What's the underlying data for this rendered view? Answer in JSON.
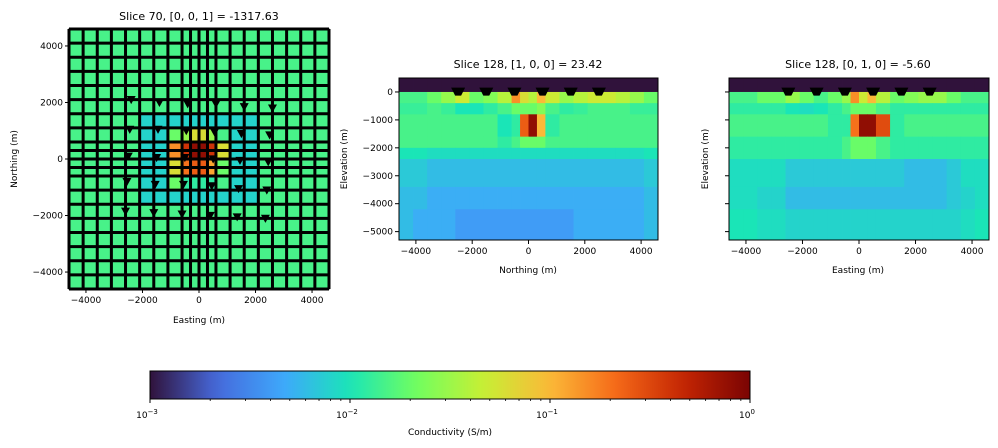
{
  "colors": {
    "turbo_stops": [
      "#30123b",
      "#4669db",
      "#3ea8fc",
      "#1ae5b7",
      "#71fe5f",
      "#c7ef34",
      "#fbb938",
      "#f56918",
      "#c42503",
      "#7a0403"
    ]
  },
  "chart_data": [
    {
      "type": "heatmap",
      "title": "Slice 70, [0, 0, 1] = -1317.63",
      "xlabel": "Easting (m)",
      "ylabel": "Northing (m)",
      "xlim": [
        -4600,
        4600
      ],
      "ylim": [
        -4600,
        4600
      ],
      "xticks": [
        -4000,
        -2000,
        0,
        2000,
        4000
      ],
      "yticks": [
        -4000,
        -2000,
        0,
        2000,
        4000
      ],
      "xtick_labels": [
        "−4000",
        "−2000",
        "0",
        "2000",
        "4000"
      ],
      "ytick_labels": [
        "−4000",
        "−2000",
        "0",
        "2000",
        "4000"
      ],
      "grid_edges": [
        -4600,
        -4100,
        -3600,
        -3100,
        -2600,
        -2100,
        -1600,
        -1100,
        -600,
        -300,
        0,
        300,
        600,
        1100,
        1600,
        2100,
        2600,
        3100,
        3600,
        4100,
        4600
      ],
      "cells": [
        {
          "x": [
            -1100,
            -600
          ],
          "y": [
            -600,
            -1100
          ],
          "v": 0.02
        },
        {
          "x": [
            -1100,
            -600
          ],
          "y": [
            600,
            1100
          ],
          "v": 0.02
        },
        {
          "x": [
            -600,
            -300
          ],
          "y": [
            1100,
            600
          ],
          "v": 0.03
        },
        {
          "x": [
            -300,
            0
          ],
          "y": [
            1100,
            600
          ],
          "v": 0.06
        },
        {
          "x": [
            0,
            300
          ],
          "y": [
            1100,
            600
          ],
          "v": 0.06
        },
        {
          "x": [
            300,
            600
          ],
          "y": [
            1100,
            600
          ],
          "v": 0.03
        },
        {
          "x": [
            -1100,
            -600
          ],
          "y": [
            600,
            0
          ],
          "v": 0.15
        },
        {
          "x": [
            -600,
            -300
          ],
          "y": [
            600,
            0
          ],
          "v": 0.4
        },
        {
          "x": [
            -300,
            0
          ],
          "y": [
            600,
            0
          ],
          "v": 0.8
        },
        {
          "x": [
            0,
            300
          ],
          "y": [
            600,
            0
          ],
          "v": 0.8
        },
        {
          "x": [
            300,
            600
          ],
          "y": [
            600,
            0
          ],
          "v": 0.4
        },
        {
          "x": [
            600,
            1100
          ],
          "y": [
            600,
            0
          ],
          "v": 0.06
        },
        {
          "x": [
            -1100,
            -600
          ],
          "y": [
            0,
            -600
          ],
          "v": 0.06
        },
        {
          "x": [
            -600,
            -300
          ],
          "y": [
            0,
            -600
          ],
          "v": 0.2
        },
        {
          "x": [
            -300,
            0
          ],
          "y": [
            0,
            -600
          ],
          "v": 0.25
        },
        {
          "x": [
            0,
            300
          ],
          "y": [
            0,
            -600
          ],
          "v": 0.25
        },
        {
          "x": [
            300,
            600
          ],
          "y": [
            0,
            -600
          ],
          "v": 0.12
        },
        {
          "x": [
            600,
            1100
          ],
          "y": [
            0,
            -600
          ],
          "v": 0.02
        },
        {
          "x": [
            -600,
            600
          ],
          "y": [
            -600,
            -1100
          ],
          "v": 0.012
        },
        {
          "x": [
            -2100,
            -1100
          ],
          "y": [
            1600,
            -1600
          ],
          "v": 0.008
        },
        {
          "x": [
            1100,
            2100
          ],
          "y": [
            1600,
            -1600
          ],
          "v": 0.008
        },
        {
          "x": [
            -1100,
            1100
          ],
          "y": [
            1600,
            1100
          ],
          "v": 0.008
        },
        {
          "x": [
            -1100,
            1100
          ],
          "y": [
            -1100,
            -1600
          ],
          "v": 0.008
        }
      ],
      "background_value": 0.015,
      "markers": [
        [
          -2400,
          2100
        ],
        [
          -1400,
          2000
        ],
        [
          -400,
          1950
        ],
        [
          600,
          1950
        ],
        [
          1600,
          1850
        ],
        [
          2600,
          1800
        ],
        [
          -2450,
          1050
        ],
        [
          -1450,
          1050
        ],
        [
          -450,
          1000
        ],
        [
          550,
          950
        ],
        [
          1500,
          900
        ],
        [
          2500,
          850
        ],
        [
          -2500,
          100
        ],
        [
          -1500,
          50
        ],
        [
          -500,
          50
        ],
        [
          500,
          0
        ],
        [
          1450,
          -50
        ],
        [
          2450,
          -100
        ],
        [
          -2550,
          -800
        ],
        [
          -1550,
          -900
        ],
        [
          -550,
          -900
        ],
        [
          450,
          -950
        ],
        [
          1400,
          -1050
        ],
        [
          2400,
          -1100
        ],
        [
          -2600,
          -1850
        ],
        [
          -1600,
          -1900
        ],
        [
          -600,
          -1950
        ],
        [
          400,
          -2000
        ],
        [
          1350,
          -2050
        ],
        [
          2350,
          -2100
        ]
      ]
    },
    {
      "type": "heatmap",
      "title": "Slice 128, [1, 0, 0] = 23.42",
      "xlabel": "Northing (m)",
      "ylabel": "Elevation (m)",
      "xlim": [
        -4600,
        4600
      ],
      "ylim": [
        -5300,
        500
      ],
      "xticks": [
        -4000,
        -2000,
        0,
        2000,
        4000
      ],
      "yticks": [
        0,
        -1000,
        -2000,
        -3000,
        -4000,
        -5000
      ],
      "xtick_labels": [
        "−4000",
        "−2000",
        "0",
        "2000",
        "4000"
      ],
      "ytick_labels": [
        "0",
        "−1000",
        "−2000",
        "−3000",
        "−4000",
        "−5000"
      ],
      "columns": [
        -4600,
        -4100,
        -3600,
        -3100,
        -2600,
        -2100,
        -1600,
        -1100,
        -600,
        -300,
        0,
        300,
        600,
        1100,
        1600,
        2100,
        2600,
        3100,
        3600,
        4100,
        4600
      ],
      "rows": [
        {
          "y": [
            500,
            0
          ],
          "values": [
            0.001,
            0.001,
            0.001,
            0.001,
            0.001,
            0.001,
            0.001,
            0.001,
            0.001,
            0.001,
            0.001,
            0.001,
            0.001,
            0.001,
            0.001,
            0.001,
            0.001,
            0.001,
            0.001,
            0.001
          ]
        },
        {
          "y": [
            0,
            -400
          ],
          "values": [
            0.015,
            0.015,
            0.02,
            0.03,
            0.05,
            0.02,
            0.025,
            0.04,
            0.15,
            0.06,
            0.04,
            0.1,
            0.05,
            0.03,
            0.04,
            0.05,
            0.05,
            0.04,
            0.03,
            0.02
          ]
        },
        {
          "y": [
            -400,
            -800
          ],
          "values": [
            0.013,
            0.013,
            0.015,
            0.013,
            0.01,
            0.01,
            0.012,
            0.015,
            0.02,
            0.02,
            0.02,
            0.025,
            0.015,
            0.012,
            0.013,
            0.015,
            0.015,
            0.015,
            0.013,
            0.013
          ]
        },
        {
          "y": [
            -800,
            -1600
          ],
          "values": [
            0.015,
            0.015,
            0.015,
            0.015,
            0.015,
            0.015,
            0.015,
            0.01,
            0.012,
            0.25,
            0.8,
            0.1,
            0.012,
            0.015,
            0.015,
            0.015,
            0.015,
            0.015,
            0.015,
            0.015
          ]
        },
        {
          "y": [
            -1600,
            -2000
          ],
          "values": [
            0.015,
            0.015,
            0.015,
            0.015,
            0.015,
            0.015,
            0.015,
            0.012,
            0.015,
            0.02,
            0.02,
            0.02,
            0.015,
            0.015,
            0.015,
            0.015,
            0.015,
            0.015,
            0.015,
            0.015
          ]
        },
        {
          "y": [
            -2000,
            -2400
          ],
          "values": [
            0.01,
            0.01,
            0.009,
            0.009,
            0.009,
            0.009,
            0.009,
            0.009,
            0.009,
            0.009,
            0.009,
            0.009,
            0.009,
            0.009,
            0.009,
            0.009,
            0.009,
            0.009,
            0.009,
            0.01
          ]
        },
        {
          "y": [
            -2400,
            -3400
          ],
          "values": [
            0.007,
            0.007,
            0.006,
            0.006,
            0.006,
            0.006,
            0.006,
            0.006,
            0.006,
            0.006,
            0.006,
            0.006,
            0.006,
            0.006,
            0.006,
            0.006,
            0.006,
            0.006,
            0.006,
            0.007
          ]
        },
        {
          "y": [
            -3400,
            -4200
          ],
          "values": [
            0.006,
            0.006,
            0.005,
            0.005,
            0.005,
            0.005,
            0.005,
            0.005,
            0.005,
            0.005,
            0.005,
            0.005,
            0.005,
            0.005,
            0.005,
            0.005,
            0.005,
            0.005,
            0.005,
            0.006
          ]
        },
        {
          "y": [
            -4200,
            -5300
          ],
          "values": [
            0.006,
            0.005,
            0.005,
            0.005,
            0.004,
            0.004,
            0.004,
            0.004,
            0.004,
            0.004,
            0.004,
            0.004,
            0.004,
            0.004,
            0.005,
            0.005,
            0.005,
            0.005,
            0.005,
            0.006
          ]
        }
      ],
      "markers": [
        [
          -2500,
          50
        ],
        [
          -1500,
          50
        ],
        [
          -500,
          50
        ],
        [
          500,
          50
        ],
        [
          1500,
          50
        ],
        [
          2500,
          50
        ]
      ]
    },
    {
      "type": "heatmap",
      "title": "Slice 128, [0, 1, 0] = -5.60",
      "xlabel": "Easting (m)",
      "ylabel": "Elevation (m)",
      "xlim": [
        -4600,
        4600
      ],
      "ylim": [
        -5300,
        500
      ],
      "xticks": [
        -4000,
        -2000,
        0,
        2000,
        4000
      ],
      "yticks": [
        0,
        -1000,
        -2000,
        -3000,
        -4000,
        -5000
      ],
      "xtick_labels": [
        "−4000",
        "−2000",
        "0",
        "2000",
        "4000"
      ],
      "ytick_labels": [],
      "columns": [
        -4600,
        -4100,
        -3600,
        -3100,
        -2600,
        -2100,
        -1600,
        -1100,
        -600,
        -300,
        0,
        300,
        600,
        1100,
        1600,
        2100,
        2600,
        3100,
        3600,
        4100,
        4600
      ],
      "rows": [
        {
          "y": [
            500,
            0
          ],
          "values": [
            0.001,
            0.001,
            0.001,
            0.001,
            0.001,
            0.001,
            0.001,
            0.001,
            0.001,
            0.001,
            0.001,
            0.001,
            0.001,
            0.001,
            0.001,
            0.001,
            0.001,
            0.001,
            0.001,
            0.001
          ]
        },
        {
          "y": [
            0,
            -400
          ],
          "values": [
            0.015,
            0.015,
            0.02,
            0.02,
            0.03,
            0.02,
            0.015,
            0.02,
            0.03,
            0.15,
            0.05,
            0.1,
            0.04,
            0.02,
            0.025,
            0.03,
            0.03,
            0.02,
            0.015,
            0.015
          ]
        },
        {
          "y": [
            -400,
            -800
          ],
          "values": [
            0.012,
            0.012,
            0.012,
            0.012,
            0.01,
            0.009,
            0.01,
            0.012,
            0.015,
            0.02,
            0.02,
            0.02,
            0.015,
            0.012,
            0.012,
            0.012,
            0.012,
            0.012,
            0.012,
            0.012
          ]
        },
        {
          "y": [
            -800,
            -1600
          ],
          "values": [
            0.015,
            0.015,
            0.015,
            0.015,
            0.015,
            0.015,
            0.015,
            0.012,
            0.012,
            0.2,
            0.8,
            0.8,
            0.3,
            0.012,
            0.015,
            0.015,
            0.015,
            0.015,
            0.015,
            0.015
          ]
        },
        {
          "y": [
            -1600,
            -2400
          ],
          "values": [
            0.012,
            0.012,
            0.012,
            0.012,
            0.012,
            0.012,
            0.012,
            0.012,
            0.015,
            0.02,
            0.02,
            0.02,
            0.015,
            0.012,
            0.012,
            0.012,
            0.012,
            0.012,
            0.012,
            0.012
          ]
        },
        {
          "y": [
            -2400,
            -3400
          ],
          "values": [
            0.009,
            0.009,
            0.009,
            0.009,
            0.007,
            0.007,
            0.007,
            0.007,
            0.007,
            0.007,
            0.007,
            0.007,
            0.007,
            0.007,
            0.006,
            0.006,
            0.006,
            0.007,
            0.009,
            0.009
          ]
        },
        {
          "y": [
            -3400,
            -4200
          ],
          "values": [
            0.009,
            0.009,
            0.008,
            0.008,
            0.006,
            0.006,
            0.006,
            0.006,
            0.006,
            0.006,
            0.006,
            0.006,
            0.006,
            0.006,
            0.006,
            0.006,
            0.006,
            0.007,
            0.008,
            0.009
          ]
        },
        {
          "y": [
            -4200,
            -5300
          ],
          "values": [
            0.01,
            0.01,
            0.009,
            0.009,
            0.008,
            0.008,
            0.008,
            0.008,
            0.008,
            0.008,
            0.008,
            0.008,
            0.008,
            0.008,
            0.008,
            0.008,
            0.008,
            0.008,
            0.009,
            0.01
          ]
        }
      ],
      "markers": [
        [
          -2500,
          50
        ],
        [
          -1500,
          50
        ],
        [
          -500,
          50
        ],
        [
          500,
          50
        ],
        [
          1500,
          50
        ],
        [
          2500,
          50
        ]
      ]
    }
  ],
  "colorbar": {
    "label": "Conductivity (S/m)",
    "scale": "log",
    "range": [
      0.001,
      1
    ],
    "ticks": [
      0.001,
      0.01,
      0.1,
      1
    ],
    "tick_bases": [
      "10",
      "10",
      "10",
      "10"
    ],
    "tick_exponents": [
      "−3",
      "−2",
      "−1",
      "0"
    ]
  }
}
